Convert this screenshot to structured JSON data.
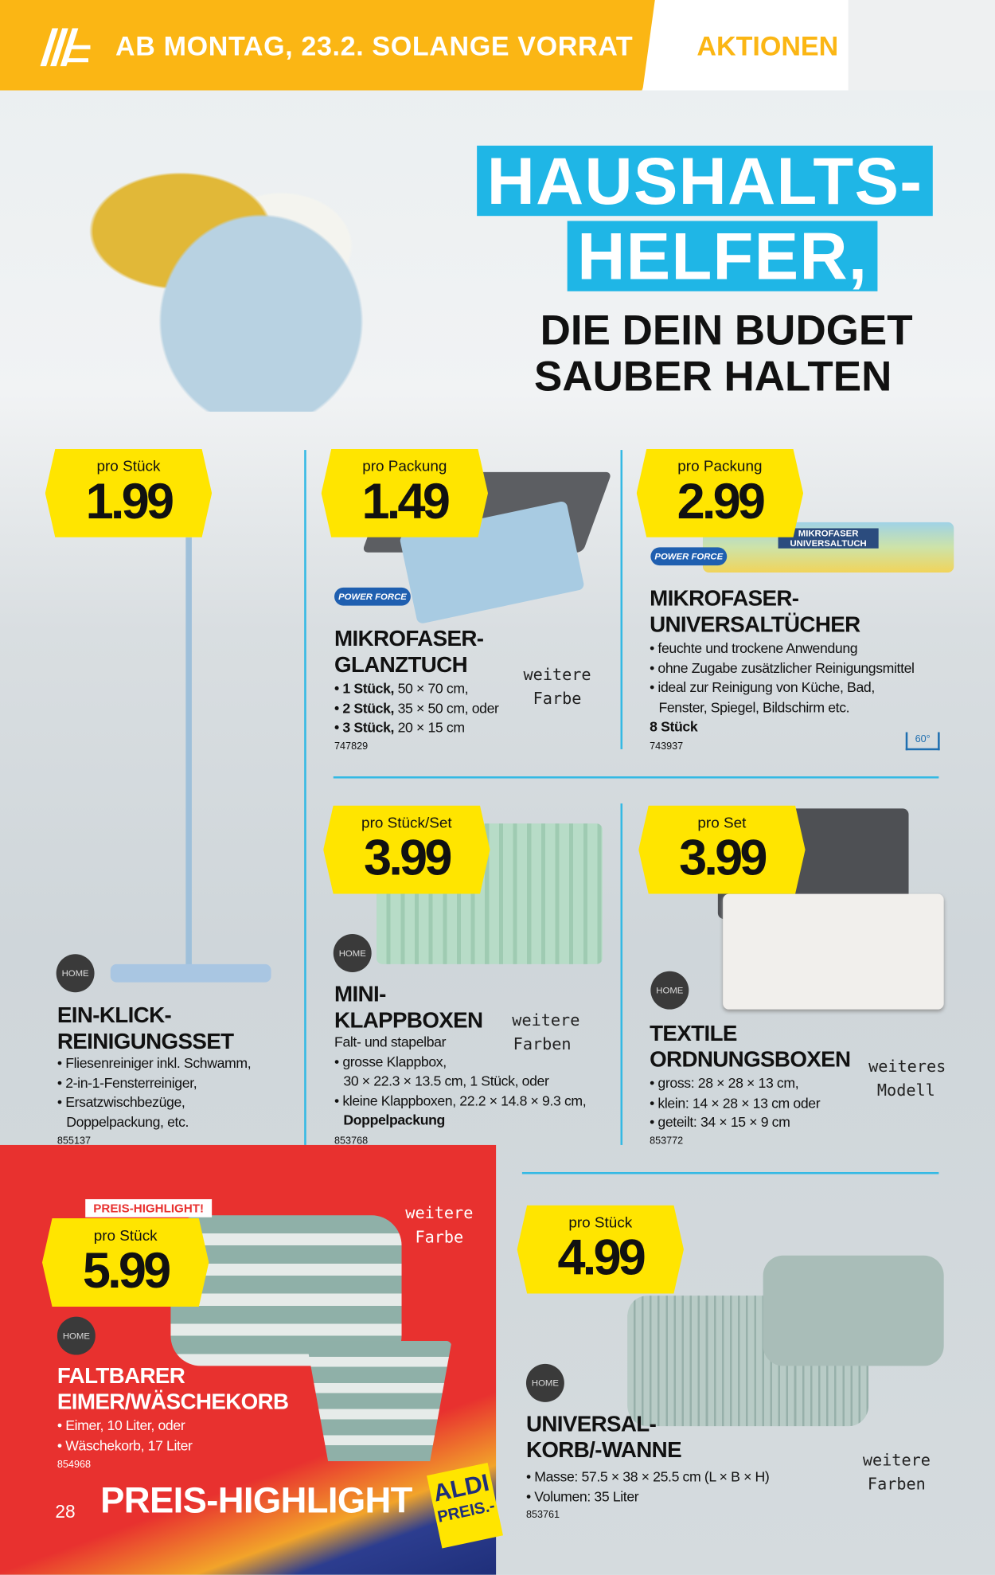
{
  "header": {
    "banner": "AB MONTAG, 23.2. SOLANGE VORRAT",
    "section": "AKTIONEN"
  },
  "headline": {
    "line1": "HAUSHALTS-",
    "line2": "HELFER,",
    "line3": "DIE DEIN BUDGET",
    "line4": "SAUBER HALTEN"
  },
  "products": [
    {
      "price_label": "pro Stück",
      "price": "1.99",
      "brand": "HOME",
      "title1": "EIN-KLICK-",
      "title2": "REINIGUNGSSET",
      "bullets": [
        "• Fliesenreiniger inkl. Schwamm,",
        "• 2-in-1-Fensterreiniger,",
        "• Ersatzwischbezüge,",
        "  Doppelpackung, etc."
      ],
      "article": "855137"
    },
    {
      "price_label": "pro Packung",
      "price": "1.49",
      "brand": "POWER FORCE",
      "title1": "MIKROFASER-",
      "title2": "GLANZTUCH",
      "bullets": [
        {
          "b": "• 1 Stück,",
          "t": " 50 × 70 cm,"
        },
        {
          "b": "• 2 Stück,",
          "t": " 35 × 50 cm, oder"
        },
        {
          "b": "• 3 Stück,",
          "t": " 20 × 15 cm"
        }
      ],
      "note": "weitere Farbe",
      "article": "747829"
    },
    {
      "price_label": "pro Packung",
      "price": "2.99",
      "brand": "POWER FORCE",
      "title1": "MIKROFASER-",
      "title2": "UNIVERSALTÜCHER",
      "bullets": [
        "• feuchte und trockene Anwendung",
        "• ohne Zugabe zusätzlicher Reinigungsmittel",
        "• ideal zur Reinigung von Küche, Bad,",
        "  Fenster, Spiegel, Bildschirm etc."
      ],
      "extra": "8 Stück",
      "wash": "60°",
      "package_text": "MIKROFASER UNIVERSALTUCH",
      "article": "743937"
    },
    {
      "price_label": "pro Stück/Set",
      "price": "3.99",
      "brand": "HOME",
      "title1": "MINI-",
      "title2": "KLAPPBOXEN",
      "bullets": [
        "Falt- und stapelbar",
        "• grosse Klappbox,",
        "  30 × 22.3 × 13.5 cm, 1 Stück, oder",
        "• kleine Klappboxen, 22.2 × 14.8 × 9.3 cm,",
        "  Doppelpackung"
      ],
      "note": "weitere Farben",
      "article": "853768"
    },
    {
      "price_label": "pro Set",
      "price": "3.99",
      "brand": "HOME",
      "title1": "TEXTILE",
      "title2": "ORDNUNGSBOXEN",
      "bullets": [
        "• gross: 28 × 28 × 13 cm,",
        "• klein: 14 × 28 × 13 cm oder",
        "• geteilt: 34 × 15 × 9 cm"
      ],
      "note": "weiteres Modell",
      "article": "853772"
    },
    {
      "price_label": "pro Stück",
      "price": "5.99",
      "highlight": "PREIS-HIGHLIGHT!",
      "brand": "HOME",
      "title1": "FALTBARER",
      "title2": "EIMER/WÄSCHEKORB",
      "bullets": [
        "• Eimer, 10 Liter, oder",
        "• Wäschekorb, 17 Liter"
      ],
      "note": "weitere Farbe",
      "article": "854968"
    },
    {
      "price_label": "pro Stück",
      "price": "4.99",
      "brand": "HOME",
      "title1": "UNIVERSAL-",
      "title2": "KORB/-WANNE",
      "bullets": [
        "• Masse: 57.5 × 38 × 25.5 cm (L × B × H)",
        "• Volumen: 35 Liter"
      ],
      "note": "weitere Farben",
      "article": "853761"
    }
  ],
  "footer": {
    "page": "28",
    "highlight": "PREIS-HIGHLIGHT",
    "aldi1": "ALDI",
    "aldi2": "PREIS.-"
  },
  "colors": {
    "yellow": "#fbb614",
    "cyan": "#1fb6e6",
    "red": "#e8312f",
    "price_badge": "#ffe500"
  }
}
